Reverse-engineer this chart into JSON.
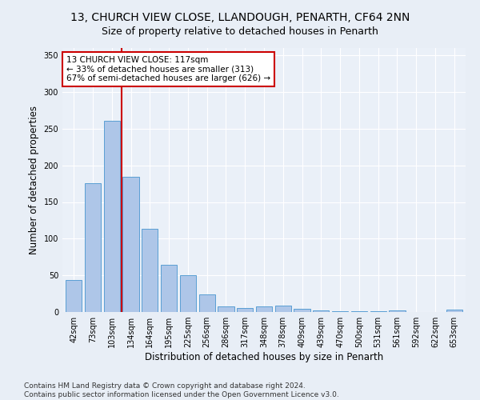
{
  "title": "13, CHURCH VIEW CLOSE, LLANDOUGH, PENARTH, CF64 2NN",
  "subtitle": "Size of property relative to detached houses in Penarth",
  "xlabel": "Distribution of detached houses by size in Penarth",
  "ylabel": "Number of detached properties",
  "categories": [
    "42sqm",
    "73sqm",
    "103sqm",
    "134sqm",
    "164sqm",
    "195sqm",
    "225sqm",
    "256sqm",
    "286sqm",
    "317sqm",
    "348sqm",
    "378sqm",
    "409sqm",
    "439sqm",
    "470sqm",
    "500sqm",
    "531sqm",
    "561sqm",
    "592sqm",
    "622sqm",
    "653sqm"
  ],
  "values": [
    44,
    176,
    261,
    184,
    113,
    64,
    50,
    24,
    8,
    6,
    8,
    9,
    4,
    2,
    1,
    1,
    1,
    2,
    0,
    0,
    3
  ],
  "bar_color": "#aec6e8",
  "bar_edge_color": "#5a9fd4",
  "vline_x": 2.5,
  "vline_color": "#cc0000",
  "annotation_text": "13 CHURCH VIEW CLOSE: 117sqm\n← 33% of detached houses are smaller (313)\n67% of semi-detached houses are larger (626) →",
  "annotation_box_color": "#ffffff",
  "annotation_box_edge": "#cc0000",
  "ylim": [
    0,
    360
  ],
  "yticks": [
    0,
    50,
    100,
    150,
    200,
    250,
    300,
    350
  ],
  "bg_color": "#e8eef6",
  "plot_bg_color": "#eaf0f8",
  "footer": "Contains HM Land Registry data © Crown copyright and database right 2024.\nContains public sector information licensed under the Open Government Licence v3.0.",
  "title_fontsize": 10,
  "subtitle_fontsize": 9,
  "xlabel_fontsize": 8.5,
  "ylabel_fontsize": 8.5,
  "footer_fontsize": 6.5,
  "tick_fontsize": 7
}
